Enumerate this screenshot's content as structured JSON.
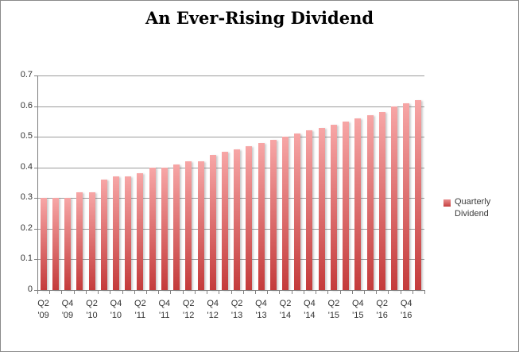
{
  "chart_data": {
    "type": "bar",
    "title": "An Ever-Rising Dividend",
    "xlabel": "",
    "ylabel": "",
    "ylim": [
      0,
      0.7
    ],
    "y_tick_labels": [
      "0",
      "0.1",
      "0.2",
      "0.3",
      "0.4",
      "0.5",
      "0.6",
      "0.7"
    ],
    "x_tick_labels": [
      [
        "Q2",
        "'09"
      ],
      [
        "Q4",
        "'09"
      ],
      [
        "Q2",
        "'10"
      ],
      [
        "Q4",
        "'10"
      ],
      [
        "Q2",
        "'11"
      ],
      [
        "Q4",
        "'11"
      ],
      [
        "Q2",
        "'12"
      ],
      [
        "Q4",
        "'12"
      ],
      [
        "Q2",
        "'13"
      ],
      [
        "Q4",
        "'13"
      ],
      [
        "Q2",
        "'14"
      ],
      [
        "Q4",
        "'14"
      ],
      [
        "Q2",
        "'15"
      ],
      [
        "Q4",
        "'15"
      ],
      [
        "Q2",
        "'16"
      ],
      [
        "Q4",
        "'16"
      ]
    ],
    "x_label_every_n_bars": 2,
    "grid": "horizontal",
    "legend_position": "right",
    "series": [
      {
        "name": "Quarterly Dividend",
        "values": [
          0.3,
          0.3,
          0.3,
          0.32,
          0.32,
          0.36,
          0.37,
          0.37,
          0.38,
          0.4,
          0.4,
          0.41,
          0.42,
          0.42,
          0.44,
          0.45,
          0.46,
          0.47,
          0.48,
          0.49,
          0.5,
          0.51,
          0.52,
          0.53,
          0.54,
          0.55,
          0.56,
          0.57,
          0.58,
          0.6,
          0.61,
          0.62
        ]
      }
    ],
    "colors": {
      "bar_gradient_top": "#f7a6a6",
      "bar_gradient_bottom": "#c43b3b",
      "gridline": "#9b9b9b",
      "axis": "#808080",
      "text": "#333333"
    }
  },
  "legend": {
    "line1": "Quarterly",
    "line2": "Dividend"
  }
}
